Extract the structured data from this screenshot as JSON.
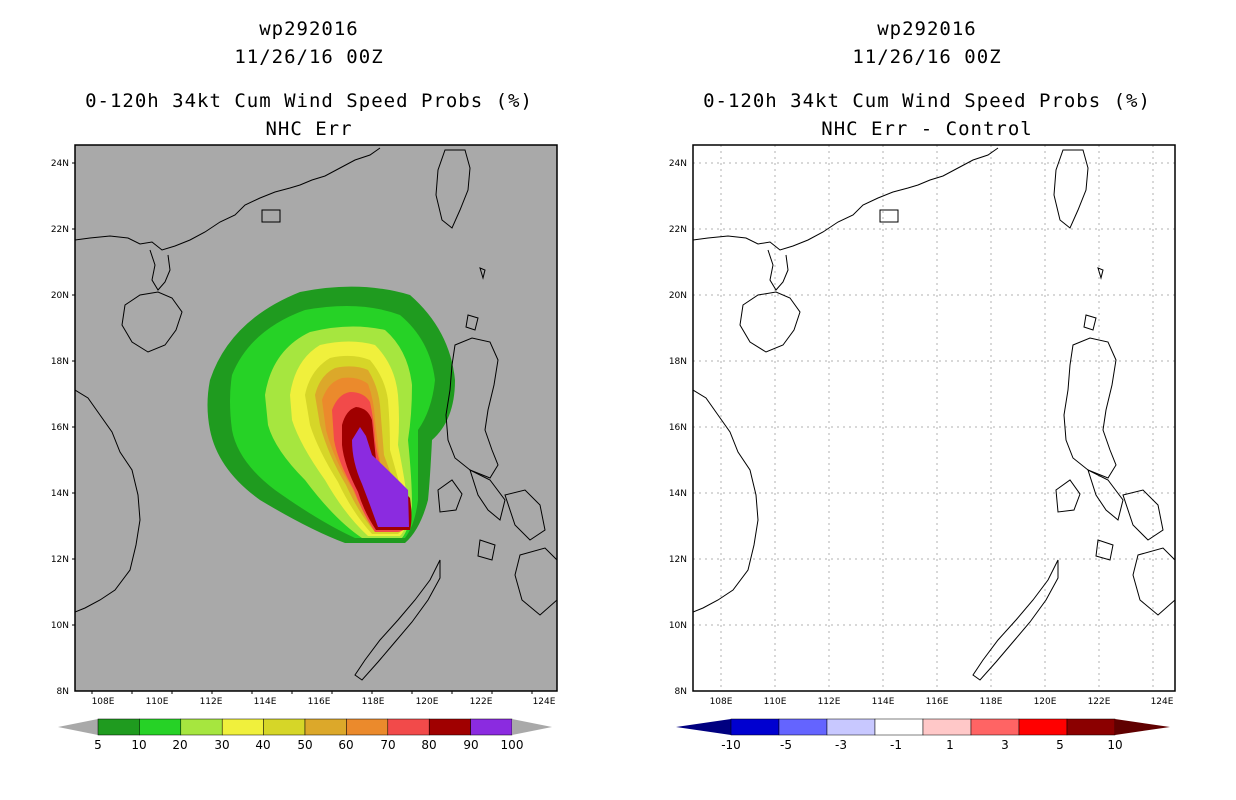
{
  "left": {
    "title_storm": "wp292016",
    "title_time": "11/26/16 00Z",
    "title_product": "0-120h 34kt Cum Wind Speed Probs (%)",
    "title_case": "NHC Err",
    "lat_labels": [
      "24N",
      "22N",
      "20N",
      "18N",
      "16N",
      "14N",
      "12N",
      "10N",
      "8N"
    ],
    "lon_labels": [
      "108E",
      "110E",
      "112E",
      "114E",
      "116E",
      "118E",
      "120E",
      "122E",
      "124E"
    ],
    "colorbar": {
      "labels": [
        "5",
        "10",
        "20",
        "30",
        "40",
        "50",
        "60",
        "70",
        "80",
        "90",
        "100"
      ],
      "colors": [
        "#1f9b1f",
        "#26d226",
        "#a6e63f",
        "#f0f03c",
        "#d6d628",
        "#dca82a",
        "#eb8a2c",
        "#f24a4a",
        "#a00000",
        "#8b2be0"
      ]
    }
  },
  "right": {
    "title_storm": "wp292016",
    "title_time": "11/26/16 00Z",
    "title_product": "0-120h 34kt Cum Wind Speed Probs (%)",
    "title_case": "NHC Err - Control",
    "lat_labels": [
      "24N",
      "22N",
      "20N",
      "18N",
      "16N",
      "14N",
      "12N",
      "10N",
      "8N"
    ],
    "lon_labels": [
      "108E",
      "110E",
      "112E",
      "114E",
      "116E",
      "118E",
      "120E",
      "122E",
      "124E"
    ],
    "colorbar": {
      "labels": [
        "-10",
        "-5",
        "-3",
        "-1",
        "1",
        "3",
        "5",
        "10"
      ],
      "colors": [
        "#0000d0",
        "#6464ff",
        "#c8c8ff",
        "#ffffff",
        "#ffc8c8",
        "#ff6464",
        "#ff0000",
        "#8b0000"
      ]
    }
  }
}
